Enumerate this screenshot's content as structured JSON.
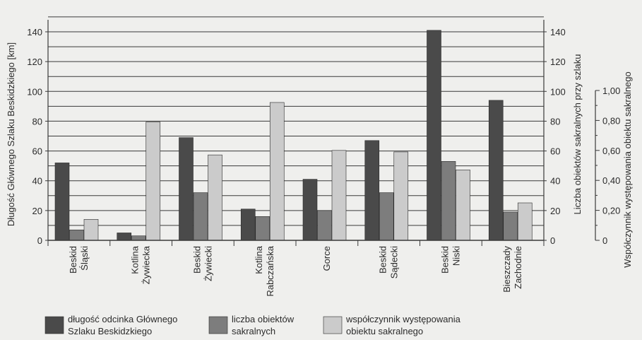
{
  "chart_data": {
    "type": "bar",
    "categories": [
      [
        "Beskid",
        "Śląski"
      ],
      [
        "Kotlina",
        "Żywiecka"
      ],
      [
        "Beskid",
        "Żywiecki"
      ],
      [
        "Kotlina",
        "Rabczańska"
      ],
      [
        "Gorce"
      ],
      [
        "Beskid",
        "Sądecki"
      ],
      [
        "Beskid",
        "Niski"
      ],
      [
        "Bieszczady",
        "Zachodnie"
      ]
    ],
    "series": [
      {
        "name": "długość odcinka Głównego Szlaku Beskidzkiego",
        "axis": "left",
        "color": "#4a4a4a",
        "values": [
          52,
          5,
          69,
          21,
          41,
          67,
          141,
          94
        ]
      },
      {
        "name": "liczba obiektów sakralnych",
        "axis": "right",
        "color": "#7d7d7d",
        "values": [
          7,
          3,
          32,
          16,
          20,
          32,
          53,
          19
        ]
      },
      {
        "name": "współczynnik występowania obiektu sakralnego",
        "axis": "right2",
        "color": "#cbcbcb",
        "values": [
          0.14,
          0.79,
          0.57,
          0.92,
          0.6,
          0.59,
          0.47,
          0.25
        ]
      }
    ],
    "axes": {
      "left": {
        "label": "Długość Głównego Szlaku Beskidzkiego [km]",
        "ylim": [
          0,
          150
        ],
        "ticks": [
          "0",
          "20",
          "40",
          "60",
          "80",
          "100",
          "120",
          "140"
        ]
      },
      "right": {
        "label": "Liczba obiektów sakralnych przy szlaku",
        "ylim": [
          0,
          150
        ],
        "ticks": [
          "0",
          "20",
          "40",
          "60",
          "80",
          "100",
          "120",
          "140"
        ]
      },
      "right2": {
        "label": "Współczynnik występowania obiektu sakralnego",
        "ylim": [
          0,
          1.25
        ],
        "ticks": [
          "0",
          "0,20",
          "0,40",
          "0,60",
          "0,80",
          "1,00"
        ]
      }
    },
    "grid": true,
    "legend": [
      {
        "lines": [
          "długość odcinka Głównego",
          "Szlaku Beskidzkiego"
        ]
      },
      {
        "lines": [
          "liczba obiektów",
          "sakralnych"
        ]
      },
      {
        "lines": [
          "współczynnik występowania",
          "obiektu sakralnego"
        ]
      }
    ],
    "legend_position": "bottom"
  }
}
